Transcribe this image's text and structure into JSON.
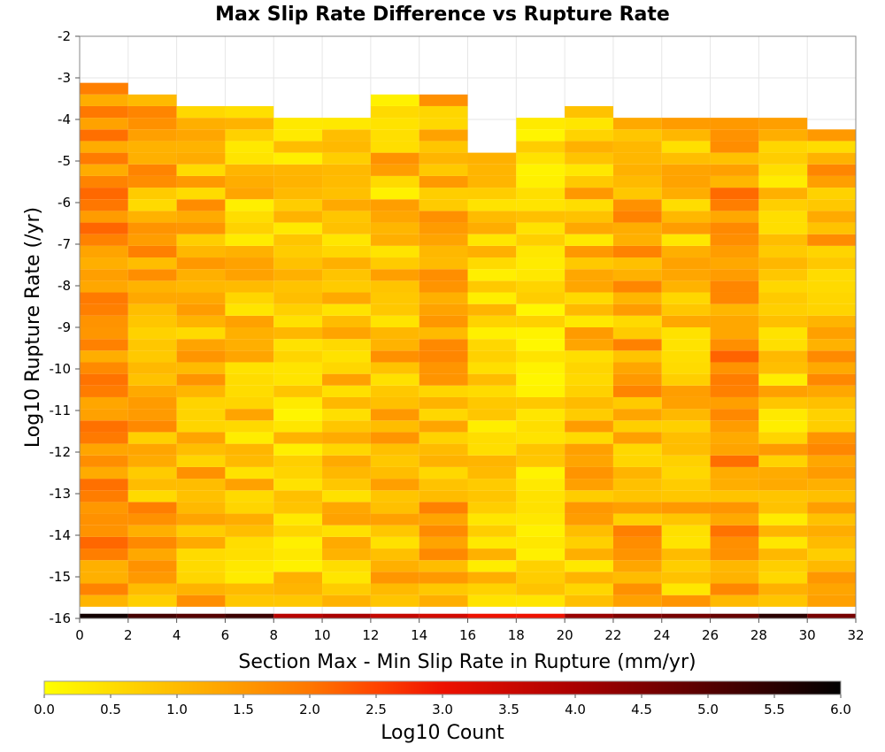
{
  "chart_data": {
    "type": "heatmap",
    "title": "Max Slip Rate Difference vs Rupture Rate",
    "xlabel": "Section Max - Min Slip Rate in Rupture (mm/yr)",
    "ylabel": "Log10 Rupture Rate (/yr)",
    "xlim": [
      0,
      32
    ],
    "ylim": [
      -16,
      -2
    ],
    "x_ticks": [
      "0",
      "2",
      "4",
      "6",
      "8",
      "10",
      "12",
      "14",
      "16",
      "18",
      "20",
      "22",
      "24",
      "26",
      "28",
      "30",
      "32"
    ],
    "y_ticks": [
      "-2",
      "-3",
      "-4",
      "-5",
      "-6",
      "-7",
      "-8",
      "-9",
      "-10",
      "-11",
      "-12",
      "-13",
      "-14",
      "-15",
      "-16"
    ],
    "x_bin_width": 2,
    "y_bin_width": 0.28,
    "colorbar": {
      "label": "Log10 Count",
      "range": [
        0,
        6
      ],
      "ticks": [
        "0.0",
        "0.5",
        "1.0",
        "1.5",
        "2.0",
        "2.5",
        "3.0",
        "3.5",
        "4.0",
        "4.5",
        "5.0",
        "5.5",
        "6.0"
      ],
      "stops": [
        [
          0,
          "#ffff00"
        ],
        [
          1,
          "#ffbb00"
        ],
        [
          2,
          "#ff7700"
        ],
        [
          2.5,
          "#ff4400"
        ],
        [
          3,
          "#ee1100"
        ],
        [
          4,
          "#aa0000"
        ],
        [
          5,
          "#550000"
        ],
        [
          6,
          "#000000"
        ]
      ]
    },
    "columns": [
      {
        "x": 1,
        "y_range": [
          -16,
          -3.0
        ],
        "value_min": 1.1,
        "value_max": 2.3
      },
      {
        "x": 3,
        "y_range": [
          -16,
          -3.3
        ],
        "value_min": 0.5,
        "value_max": 1.9
      },
      {
        "x": 5,
        "y_range": [
          -16,
          -3.6
        ],
        "value_min": 0.5,
        "value_max": 1.7
      },
      {
        "x": 7,
        "y_range": [
          -16,
          -3.6
        ],
        "value_min": 0.2,
        "value_max": 1.4
      },
      {
        "x": 9,
        "y_range": [
          -16,
          -3.9
        ],
        "value_min": 0.1,
        "value_max": 1.2
      },
      {
        "x": 11,
        "y_range": [
          -16,
          -3.9
        ],
        "value_min": 0.3,
        "value_max": 1.4
      },
      {
        "x": 13,
        "y_range": [
          -16,
          -3.3
        ],
        "value_min": 0.2,
        "value_max": 1.7
      },
      {
        "x": 15,
        "y_range": [
          -16,
          -3.3
        ],
        "value_min": 0.5,
        "value_max": 1.9
      },
      {
        "x": 17,
        "y_range": [
          -16,
          -4.7
        ],
        "value_min": 0.2,
        "value_max": 1.2
      },
      {
        "x": 19,
        "y_range": [
          -16,
          -3.9
        ],
        "value_min": 0.1,
        "value_max": 1.0
      },
      {
        "x": 21,
        "y_range": [
          -16,
          -3.6
        ],
        "value_min": 0.3,
        "value_max": 1.6
      },
      {
        "x": 23,
        "y_range": [
          -16,
          -3.9
        ],
        "value_min": 0.5,
        "value_max": 1.9
      },
      {
        "x": 25,
        "y_range": [
          -16,
          -3.9
        ],
        "value_min": 0.3,
        "value_max": 1.6
      },
      {
        "x": 27,
        "y_range": [
          -16,
          -3.9
        ],
        "value_min": 0.8,
        "value_max": 2.2
      },
      {
        "x": 29,
        "y_range": [
          -16,
          -3.9
        ],
        "value_min": 0.2,
        "value_max": 1.5
      },
      {
        "x": 31,
        "y_range": [
          -16,
          -4.1
        ],
        "value_min": 0.5,
        "value_max": 1.8
      }
    ],
    "bottom_row": {
      "y": -15.86,
      "values": [
        5.8,
        5.2,
        5.0,
        5.3,
        3.8,
        4.0,
        3.6,
        3.4,
        3.0,
        3.0,
        4.2,
        4.5,
        4.6,
        4.8,
        5.5,
        4.6
      ]
    },
    "grid": true,
    "legend": "colorbar-bottom"
  }
}
